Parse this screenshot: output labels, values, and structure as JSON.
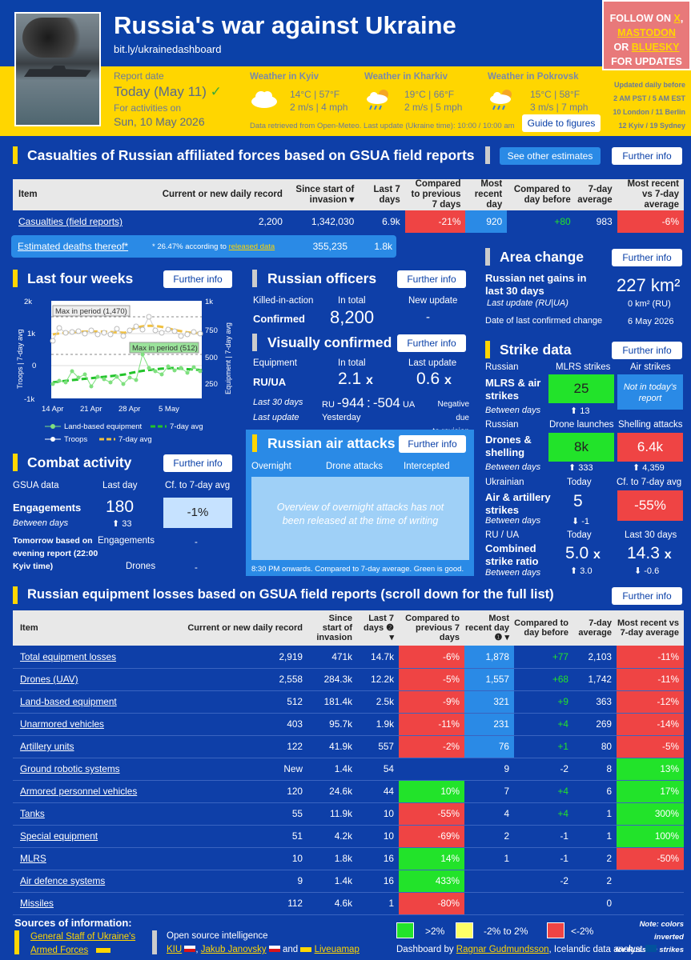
{
  "header": {
    "title": "Russia's war against Ukraine",
    "link": "bit.ly/ukrainedashboard",
    "report_date_label": "Report date",
    "report_date": "Today (May 11)",
    "check": "✓",
    "for_activities": "For activities on",
    "activities_date": "Sun, 10 May 2026"
  },
  "follow": {
    "l1a": "FOLLOW ON ",
    "x": "X",
    "comma": ",",
    "mastodon": "MASTODON",
    "or": "OR ",
    "bluesky": "BLUESKY",
    "l4": "FOR UPDATES"
  },
  "weather": [
    {
      "title": "Weather in Kyiv",
      "temp": "14°C | 57°F",
      "wind": "2 m/s | 4 mph",
      "icon": "cloud-icon"
    },
    {
      "title": "Weather in Kharkiv",
      "temp": "19°C | 66°F",
      "wind": "2 m/s | 5 mph",
      "icon": "rain-icon"
    },
    {
      "title": "Weather in Pokrovsk",
      "temp": "15°C | 58°F",
      "wind": "3 m/s | 7 mph",
      "icon": "rain-icon"
    }
  ],
  "weather_note": "Data retrieved from Open-Meteo. Last update (Ukraine time): 10:00 / 10:00 am",
  "guide": "Guide to figures",
  "updated": {
    "l1": "Updated daily before",
    "l2": "2 AM PST / 5 AM EST",
    "l3": "10 London / 11 Berlin",
    "l4": "12 Kyiv / 19 Sydney"
  },
  "cas": {
    "title": "Casualties of Russian affiliated forces based on GSUA field reports",
    "other": "See other estimates",
    "further": "Further info",
    "headers": [
      "Item",
      "Current or new daily record",
      "Since start of invasion ▾",
      "Last 7 days",
      "Compared to previous 7 days",
      "Most recent day",
      "Compared to day before",
      "7-day average",
      "Most recent vs 7-day average"
    ],
    "row1": [
      "Casualties (field reports)",
      "2,200",
      "1,342,030",
      "6.9k",
      "-21%",
      "920",
      "+80",
      "983",
      "-6%"
    ],
    "row2": {
      "item": "Estimated deaths thereof*",
      "note_a": "* 26.47% according to ",
      "note_link": "released data",
      "since": "355,235",
      "last7": "1.8k"
    }
  },
  "four": {
    "title": "Last four weeks",
    "further": "Further info",
    "y_left": "Troops | 7-day avg",
    "y_right": "Equipment | 7-day avg",
    "max1": "Max in period (1,470)",
    "max2": "Max in period (512)",
    "yl": [
      "2k",
      "1k",
      "0",
      "-1k"
    ],
    "yr": [
      "1k",
      "750",
      "500",
      "250"
    ],
    "xt": [
      "14 Apr",
      "21 Apr",
      "28 Apr",
      "5 May"
    ],
    "leg1": "Land-based equipment",
    "leg2": "7-day avg",
    "leg3": "Troops",
    "leg4": "7-day avg"
  },
  "officers": {
    "title": "Russian officers",
    "further": "Further info",
    "kia": "Killed-in-action",
    "in_total": "In total",
    "new_update": "New update",
    "confirmed": "Confirmed",
    "total": "8,200",
    "new": "-"
  },
  "visual": {
    "title": "Visually confirmed",
    "further": "Further info",
    "equipment": "Equipment",
    "in_total": "In total",
    "last_update": "Last update",
    "ruua": "RU/UA",
    "total": "2.1",
    "x": "x",
    "last": "0.6",
    "l30": "Last 30 days",
    "ru": "RU",
    "v1": "-944",
    "colon": ":",
    "v2": "-504",
    "ua": "UA",
    "neg": "Negative due",
    "neg2": "to revision",
    "lu": "Last update",
    "yesterday": "Yesterday"
  },
  "air": {
    "title": "Russian air attacks",
    "further": "Further info",
    "c1": "Overnight",
    "c2": "Drone attacks",
    "c3": "Intercepted",
    "msg": "Overview of overnight attacks has not been released at the time of writing",
    "foot": "8:30 PM onwards. Compared to 7-day average. Green is good."
  },
  "area": {
    "title": "Area change",
    "further": "Further info",
    "label": "Russian net gains in last 30 days",
    "value": "227 km²",
    "lu": "Last update (RU|UA)",
    "lu_val": "0 km² (RU)",
    "dlc": "Date of last confirmed change",
    "dlc_val": "6 May 2026"
  },
  "strike": {
    "title": "Strike data",
    "further": "Further info",
    "russian": "Russian",
    "mlrs_h": "MLRS strikes",
    "air_h": "Air strikes",
    "mlrs": "MLRS & air strikes",
    "mlrs_v": "25",
    "air_v": "Not in today's report",
    "between": "Between days",
    "mlrs_d": "⬆ 13",
    "russian2": "Russian",
    "drone_h": "Drone launches",
    "shell_h": "Shelling attacks",
    "drones": "Drones & shelling",
    "drone_v": "8k",
    "shell_v": "6.4k",
    "drone_d": "⬆ 333",
    "shell_d": "⬆ 4,359",
    "ukr": "Ukrainian",
    "today": "Today",
    "cf": "Cf. to 7-day avg",
    "aas": "Air & artillery strikes",
    "aas_v": "5",
    "aas_cf": "-55%",
    "aas_d": "⬇ -1",
    "ruua": "RU / UA",
    "today2": "Today",
    "last30": "Last 30 days",
    "csr": "Combined strike ratio",
    "csr_v": "5.0",
    "csr_30": "14.3",
    "x": "x",
    "csr_d": "⬆ 3.0",
    "csr_30d": "⬇ -0.6"
  },
  "combat": {
    "title": "Combat activity",
    "further": "Further info",
    "gsua": "GSUA data",
    "lastday": "Last day",
    "cf": "Cf. to 7-day avg",
    "eng": "Engagements",
    "eng_v": "180",
    "cf_v": "-1%",
    "between": "Between days",
    "eng_d": "⬆ 33",
    "tom": "Tomorrow based on evening report (22:00 Kyiv time)",
    "tom_eng": "Engagements",
    "tom_dr": "Drones",
    "dash": "-"
  },
  "equip": {
    "title": "Russian equipment losses based on GSUA field reports (scroll down for the full list)",
    "further": "Further info",
    "headers": [
      "Item",
      "Current or new daily record",
      "Since start of invasion",
      "Last 7 days ❷ ▾",
      "Compared to previous 7 days",
      "Most recent day ❶ ▾",
      "Compared to day before",
      "7-day average",
      "Most recent vs 7-day average"
    ],
    "rows": [
      [
        "Total equipment losses",
        "2,919",
        "471k",
        "14.7k",
        "-6%",
        "1,878",
        "+77",
        "2,103",
        "-11%"
      ],
      [
        "Drones (UAV)",
        "2,558",
        "284.3k",
        "12.2k",
        "-5%",
        "1,557",
        "+68",
        "1,742",
        "-11%"
      ],
      [
        "Land-based equipment",
        "512",
        "181.4k",
        "2.5k",
        "-9%",
        "321",
        "+9",
        "363",
        "-12%"
      ],
      [
        "Unarmored vehicles",
        "403",
        "95.7k",
        "1.9k",
        "-11%",
        "231",
        "+4",
        "269",
        "-14%"
      ],
      [
        "Artillery units",
        "122",
        "41.9k",
        "557",
        "-2%",
        "76",
        "+1",
        "80",
        "-5%"
      ],
      [
        "Ground robotic systems",
        "New",
        "1.4k",
        "54",
        "",
        "9",
        "-2",
        "8",
        "13%"
      ],
      [
        "Armored personnel vehicles",
        "120",
        "24.6k",
        "44",
        "10%",
        "7",
        "+4",
        "6",
        "17%"
      ],
      [
        "Tanks",
        "55",
        "11.9k",
        "10",
        "-55%",
        "4",
        "+4",
        "1",
        "300%"
      ],
      [
        "Special equipment",
        "51",
        "4.2k",
        "10",
        "-69%",
        "2",
        "-1",
        "1",
        "100%"
      ],
      [
        "MLRS",
        "10",
        "1.8k",
        "16",
        "14%",
        "1",
        "-1",
        "2",
        "-50%"
      ],
      [
        "Air defence systems",
        "9",
        "1.4k",
        "16",
        "433%",
        "",
        "-2",
        "2",
        ""
      ],
      [
        "Missiles",
        "112",
        "4.6k",
        "1",
        "-80%",
        "",
        "",
        "0",
        ""
      ]
    ]
  },
  "footer": {
    "sources": "Sources of information:",
    "gsua": "General Staff of Ukraine's Armed Forces",
    "osint": "Open source intelligence",
    "kiu": "KIU",
    "jj": "Jakub Janovsky",
    "and": "and",
    "lm": "Liveuamap",
    "gt": ">2%",
    "mid": "-2% to 2%",
    "lt": "<-2%",
    "dash_a": "Dashboard by ",
    "author": "Ragnar Gudmundsson",
    "dash_b": ", Icelandic data analyst",
    "note1": "Note: colors inverted",
    "note2": "for Russian strikes"
  }
}
